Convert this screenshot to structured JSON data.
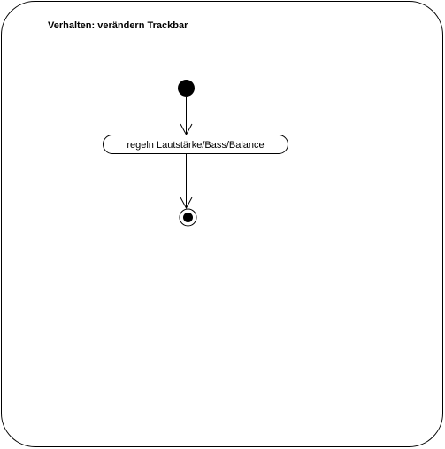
{
  "diagram": {
    "title": "Verhalten: verändern Trackbar",
    "action_label": "regeln Lautstärke/Bass/Balance",
    "nodes": [
      {
        "id": "start",
        "kind": "initial-node"
      },
      {
        "id": "action",
        "kind": "action-node"
      },
      {
        "id": "end",
        "kind": "final-node"
      }
    ],
    "edges": [
      {
        "from": "start",
        "to": "action"
      },
      {
        "from": "action",
        "to": "end"
      }
    ],
    "colors": {
      "line": "#000000",
      "background": "#ffffff"
    }
  }
}
